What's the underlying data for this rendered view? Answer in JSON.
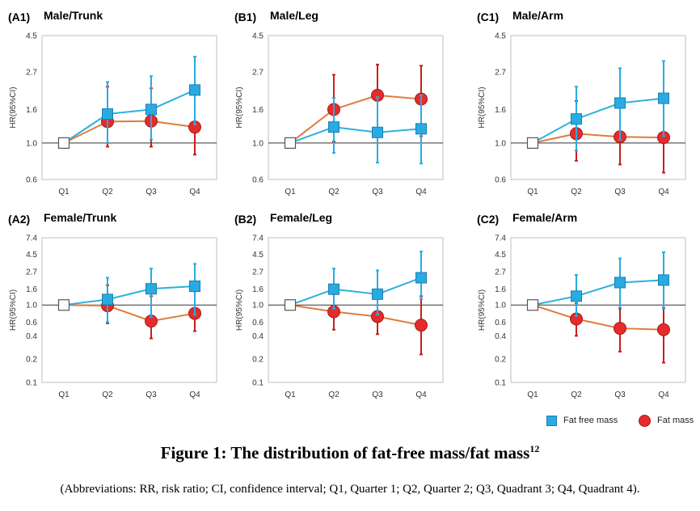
{
  "figure": {
    "title": "Figure 1: The distribution of fat-free mass/fat mass",
    "title_sup": "12",
    "caption": "(Abbreviations: RR, risk ratio; CI, confidence interval; Q1, Quarter 1; Q2, Quarter 2; Q3, Quadrant 3; Q4, Quadrant 4)."
  },
  "legend": {
    "fat_free_label": "Fat free mass",
    "fat_label": "Fat mass"
  },
  "colors": {
    "fat_free_line": "#2cb0e0",
    "fat_free_marker": "#29abe2",
    "fat_free_err": "#29abe2",
    "fat_line": "#e07b39",
    "fat_marker": "#e52b2b",
    "fat_err": "#c81e1e"
  },
  "chart_data": [
    {
      "panel": "(A1)",
      "title": "Male/Trunk",
      "type": "line",
      "categories": [
        "Q1",
        "Q2",
        "Q3",
        "Q4"
      ],
      "ylabel": "HR(95%CI)",
      "yticks": [
        0.6,
        1.0,
        1.6,
        2.7,
        4.5
      ],
      "series": [
        {
          "name": "Fat free mass",
          "values": [
            1.0,
            1.5,
            1.6,
            2.1
          ],
          "lower": [
            1.0,
            1.0,
            1.05,
            1.3
          ],
          "upper": [
            1.0,
            2.35,
            2.55,
            3.35
          ]
        },
        {
          "name": "Fat mass",
          "values": [
            1.0,
            1.35,
            1.36,
            1.25
          ],
          "lower": [
            1.0,
            0.95,
            0.95,
            0.85
          ],
          "upper": [
            1.0,
            2.2,
            2.15,
            2.05
          ]
        }
      ]
    },
    {
      "panel": "(B1)",
      "title": "Male/Leg",
      "type": "line",
      "categories": [
        "Q1",
        "Q2",
        "Q3",
        "Q4"
      ],
      "ylabel": "HR(95%CI)",
      "yticks": [
        0.6,
        1.0,
        1.6,
        2.7,
        4.5
      ],
      "series": [
        {
          "name": "Fat free mass",
          "values": [
            1.0,
            1.25,
            1.16,
            1.22
          ],
          "lower": [
            1.0,
            0.87,
            0.76,
            0.75
          ],
          "upper": [
            1.0,
            1.88,
            1.9,
            1.95
          ]
        },
        {
          "name": "Fat mass",
          "values": [
            1.0,
            1.6,
            1.95,
            1.85
          ],
          "lower": [
            1.0,
            1.02,
            1.12,
            1.1
          ],
          "upper": [
            1.0,
            2.6,
            3.0,
            2.95
          ]
        }
      ]
    },
    {
      "panel": "(C1)",
      "title": "Male/Arm",
      "type": "line",
      "categories": [
        "Q1",
        "Q2",
        "Q3",
        "Q4"
      ],
      "ylabel": "HR(95%CI)",
      "yticks": [
        0.6,
        1.0,
        1.6,
        2.7,
        4.5
      ],
      "series": [
        {
          "name": "Fat free mass",
          "values": [
            1.0,
            1.4,
            1.75,
            1.87
          ],
          "lower": [
            1.0,
            0.9,
            1.05,
            1.1
          ],
          "upper": [
            1.0,
            2.2,
            2.85,
            3.15
          ]
        },
        {
          "name": "Fat mass",
          "values": [
            1.0,
            1.14,
            1.09,
            1.08
          ],
          "lower": [
            1.0,
            0.78,
            0.74,
            0.66
          ],
          "upper": [
            1.0,
            1.8,
            1.75,
            1.75
          ]
        }
      ]
    },
    {
      "panel": "(A2)",
      "title": "Female/Trunk",
      "type": "line",
      "categories": [
        "Q1",
        "Q2",
        "Q3",
        "Q4"
      ],
      "ylabel": "HR(95%CI)",
      "yticks": [
        0.1,
        0.2,
        0.4,
        0.6,
        1.0,
        1.6,
        2.7,
        4.5,
        7.4
      ],
      "series": [
        {
          "name": "Fat free mass",
          "values": [
            1.0,
            1.18,
            1.62,
            1.75
          ],
          "lower": [
            1.0,
            0.6,
            0.7,
            0.75
          ],
          "upper": [
            1.0,
            2.25,
            2.95,
            3.4
          ]
        },
        {
          "name": "Fat mass",
          "values": [
            1.0,
            0.98,
            0.62,
            0.78
          ],
          "lower": [
            1.0,
            0.58,
            0.37,
            0.46
          ],
          "upper": [
            1.0,
            1.8,
            1.3,
            1.5
          ]
        }
      ]
    },
    {
      "panel": "(B2)",
      "title": "Female/Leg",
      "type": "line",
      "categories": [
        "Q1",
        "Q2",
        "Q3",
        "Q4"
      ],
      "ylabel": "HR(95%CI)",
      "yticks": [
        0.1,
        0.2,
        0.4,
        0.6,
        1.0,
        1.6,
        2.7,
        4.5,
        7.4
      ],
      "series": [
        {
          "name": "Fat free mass",
          "values": [
            1.0,
            1.6,
            1.38,
            2.25
          ],
          "lower": [
            1.0,
            0.9,
            0.75,
            1.2
          ],
          "upper": [
            1.0,
            2.95,
            2.8,
            4.9
          ]
        },
        {
          "name": "Fat mass",
          "values": [
            1.0,
            0.82,
            0.71,
            0.55
          ],
          "lower": [
            1.0,
            0.48,
            0.42,
            0.23
          ],
          "upper": [
            1.0,
            1.38,
            1.25,
            1.3
          ]
        }
      ]
    },
    {
      "panel": "(C2)",
      "title": "Female/Arm",
      "type": "line",
      "categories": [
        "Q1",
        "Q2",
        "Q3",
        "Q4"
      ],
      "ylabel": "HR(95%CI)",
      "yticks": [
        0.1,
        0.2,
        0.4,
        0.6,
        1.0,
        1.6,
        2.7,
        4.5,
        7.4
      ],
      "series": [
        {
          "name": "Fat free mass",
          "values": [
            1.0,
            1.3,
            1.95,
            2.1
          ],
          "lower": [
            1.0,
            0.72,
            0.92,
            0.9
          ],
          "upper": [
            1.0,
            2.45,
            4.0,
            4.8
          ]
        },
        {
          "name": "Fat mass",
          "values": [
            1.0,
            0.66,
            0.5,
            0.48
          ],
          "lower": [
            1.0,
            0.4,
            0.25,
            0.18
          ],
          "upper": [
            1.0,
            1.05,
            0.9,
            0.92
          ]
        }
      ]
    }
  ]
}
